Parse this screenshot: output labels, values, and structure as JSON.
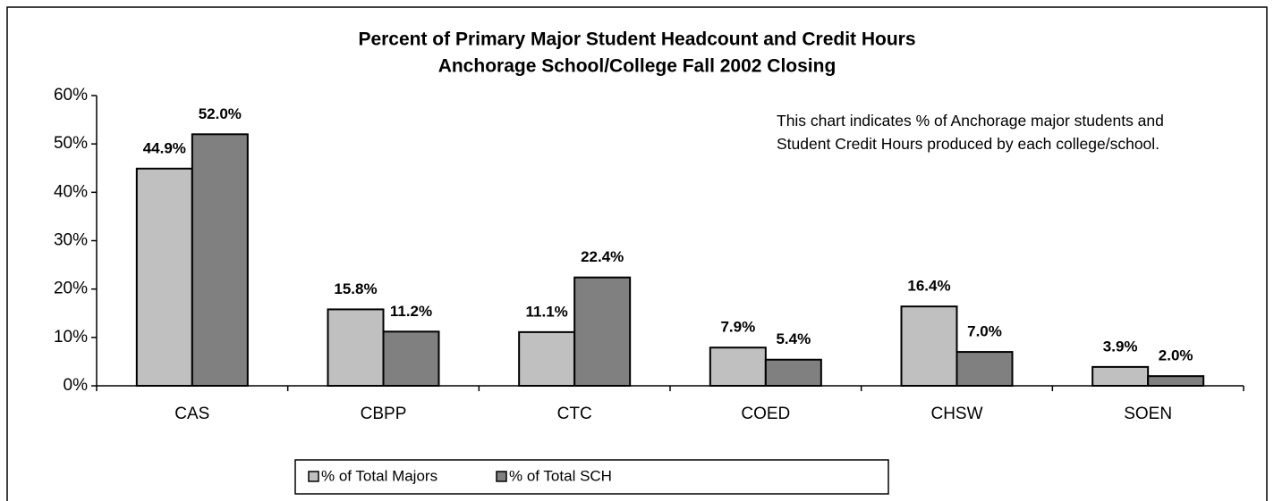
{
  "chart_data": {
    "type": "bar",
    "title": "Percent of Primary Major Student Headcount and Credit Hours",
    "subtitle": "Anchorage School/College Fall 2002 Closing",
    "annotation": "This chart indicates % of Anchorage major students and Student Credit Hours produced by each college/school.",
    "categories": [
      "CAS",
      "CBPP",
      "CTC",
      "COED",
      "CHSW",
      "SOEN"
    ],
    "series": [
      {
        "name": "% of Total Majors",
        "color": "#c0c0c0",
        "values": [
          44.9,
          15.8,
          11.1,
          7.9,
          16.4,
          3.9
        ],
        "value_labels": [
          "44.9%",
          "15.8%",
          "11.1%",
          "7.9%",
          "16.4%",
          "3.9%"
        ]
      },
      {
        "name": "% of Total SCH",
        "color": "#808080",
        "values": [
          52.0,
          11.2,
          22.4,
          5.4,
          7.0,
          2.0
        ],
        "value_labels": [
          "52.0%",
          "11.2%",
          "22.4%",
          "5.4%",
          "7.0%",
          "2.0%"
        ]
      }
    ],
    "ylim": [
      0,
      60
    ],
    "yticks": [
      {
        "value": 0,
        "label": "0%"
      },
      {
        "value": 10,
        "label": "10%"
      },
      {
        "value": 20,
        "label": "20%"
      },
      {
        "value": 30,
        "label": "30%"
      },
      {
        "value": 40,
        "label": "40%"
      },
      {
        "value": 50,
        "label": "50%"
      },
      {
        "value": 60,
        "label": "60%"
      }
    ],
    "grid": false,
    "legend": "bottom"
  }
}
